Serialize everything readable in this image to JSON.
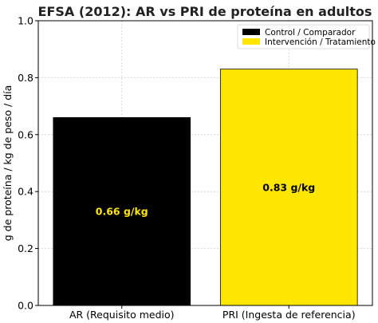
{
  "chart_data": {
    "type": "bar",
    "title": "EFSA (2012): AR vs PRI de proteína en adultos",
    "xlabel": "",
    "ylabel": "g de proteína / kg de peso / día",
    "ylim": [
      0,
      1.0
    ],
    "yticks": [
      "0.0",
      "0.2",
      "0.4",
      "0.6",
      "0.8",
      "1.0"
    ],
    "categories": [
      "AR (Requisito medio)",
      "PRI (Ingesta de referencia)"
    ],
    "values": [
      0.66,
      0.83
    ],
    "bar_colors": [
      "#000000",
      "#ffe600"
    ],
    "data_labels": [
      "0.66 g/kg",
      "0.83 g/kg"
    ],
    "data_label_colors": [
      "#ffe600",
      "#000000"
    ],
    "grid": true,
    "legend_position": "top-right",
    "legend": [
      {
        "name": "Control / Comparador",
        "color": "#000000"
      },
      {
        "name": "Intervención / Tratamiento",
        "color": "#ffe600"
      }
    ]
  }
}
